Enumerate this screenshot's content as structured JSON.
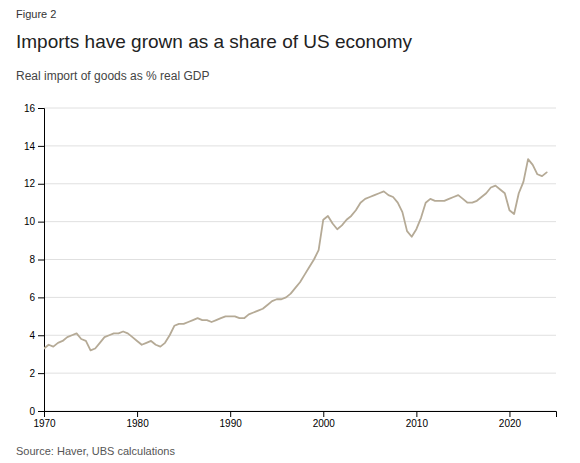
{
  "chart_data": {
    "type": "line",
    "figure_label": "Figure 2",
    "title": "Imports have grown as a share of US economy",
    "subtitle": "Real import of goods as % real GDP",
    "source": "Source: Haver, UBS calculations",
    "color": "#b5aa96",
    "grid": true,
    "xlim": [
      1970,
      2025
    ],
    "xticks": [
      1970,
      1980,
      1990,
      2000,
      2010,
      2020
    ],
    "ylim": [
      0,
      16
    ],
    "yticks": [
      0,
      2,
      4,
      6,
      8,
      10,
      12,
      14,
      16
    ],
    "x": [
      1970.0,
      1970.5,
      1971.0,
      1971.5,
      1972.0,
      1972.5,
      1973.0,
      1973.5,
      1974.0,
      1974.5,
      1975.0,
      1975.5,
      1976.0,
      1976.5,
      1977.0,
      1977.5,
      1978.0,
      1978.5,
      1979.0,
      1979.5,
      1980.0,
      1980.5,
      1981.0,
      1981.5,
      1982.0,
      1982.5,
      1983.0,
      1983.5,
      1984.0,
      1984.5,
      1985.0,
      1985.5,
      1986.0,
      1986.5,
      1987.0,
      1987.5,
      1988.0,
      1988.5,
      1989.0,
      1989.5,
      1990.0,
      1990.5,
      1991.0,
      1991.5,
      1992.0,
      1992.5,
      1993.0,
      1993.5,
      1994.0,
      1994.5,
      1995.0,
      1995.5,
      1996.0,
      1996.5,
      1997.0,
      1997.5,
      1998.0,
      1998.5,
      1999.0,
      1999.5,
      2000.0,
      2000.5,
      2001.0,
      2001.5,
      2002.0,
      2002.5,
      2003.0,
      2003.5,
      2004.0,
      2004.5,
      2005.0,
      2005.5,
      2006.0,
      2006.5,
      2007.0,
      2007.5,
      2008.0,
      2008.5,
      2009.0,
      2009.5,
      2010.0,
      2010.5,
      2011.0,
      2011.5,
      2012.0,
      2012.5,
      2013.0,
      2013.5,
      2014.0,
      2014.5,
      2015.0,
      2015.5,
      2016.0,
      2016.5,
      2017.0,
      2017.5,
      2018.0,
      2018.5,
      2019.0,
      2019.5,
      2020.0,
      2020.5,
      2021.0,
      2021.5,
      2022.0,
      2022.5,
      2023.0,
      2023.5,
      2024.0
    ],
    "values": [
      3.3,
      3.5,
      3.4,
      3.6,
      3.7,
      3.9,
      4.0,
      4.1,
      3.8,
      3.7,
      3.2,
      3.3,
      3.6,
      3.9,
      4.0,
      4.1,
      4.1,
      4.2,
      4.1,
      3.9,
      3.7,
      3.5,
      3.6,
      3.7,
      3.5,
      3.4,
      3.6,
      4.0,
      4.5,
      4.6,
      4.6,
      4.7,
      4.8,
      4.9,
      4.8,
      4.8,
      4.7,
      4.8,
      4.9,
      5.0,
      5.0,
      5.0,
      4.9,
      4.9,
      5.1,
      5.2,
      5.3,
      5.4,
      5.6,
      5.8,
      5.9,
      5.9,
      6.0,
      6.2,
      6.5,
      6.8,
      7.2,
      7.6,
      8.0,
      8.5,
      10.1,
      10.3,
      9.9,
      9.6,
      9.8,
      10.1,
      10.3,
      10.6,
      11.0,
      11.2,
      11.3,
      11.4,
      11.5,
      11.6,
      11.4,
      11.3,
      11.0,
      10.5,
      9.5,
      9.2,
      9.6,
      10.2,
      11.0,
      11.2,
      11.1,
      11.1,
      11.1,
      11.2,
      11.3,
      11.4,
      11.2,
      11.0,
      11.0,
      11.1,
      11.3,
      11.5,
      11.8,
      11.9,
      11.7,
      11.5,
      10.6,
      10.4,
      11.5,
      12.1,
      13.3,
      13.0,
      12.5,
      12.4,
      12.6
    ]
  }
}
